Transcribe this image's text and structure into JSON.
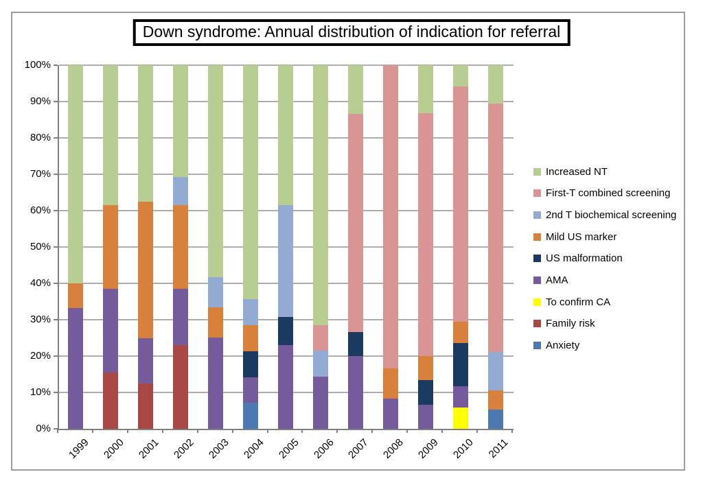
{
  "title": {
    "text": "Down syndrome: Annual distribution of indication for referral"
  },
  "styles": {
    "frame_border": "#9C9C9C",
    "axis_color": "#808080",
    "gridline_color": "#ADADAD",
    "title_border": "#000000",
    "background": "#FFFFFF"
  },
  "chart_data": {
    "type": "bar",
    "stacked": true,
    "percent_stacked": true,
    "title": "Down syndrome: Annual distribution of indication for referral",
    "categories": [
      "1999",
      "2000",
      "2001",
      "2002",
      "2003",
      "2004",
      "2005",
      "2006",
      "2007",
      "2008",
      "2009",
      "2010",
      "2011"
    ],
    "series": [
      {
        "name": "Anxiety",
        "color": "#4C7AB0",
        "values": [
          0,
          0,
          0,
          0,
          0,
          7.1,
          0,
          0,
          0,
          0,
          0,
          0,
          5.3
        ]
      },
      {
        "name": "Family risk",
        "color": "#A84744",
        "values": [
          0,
          15.4,
          12.5,
          23.1,
          0,
          0,
          0,
          0,
          0,
          0,
          0,
          0,
          0
        ]
      },
      {
        "name": "To confirm CA",
        "color": "#FDFF00",
        "values": [
          0,
          0,
          0,
          0,
          0,
          0,
          0,
          0,
          0,
          0,
          0,
          5.9,
          0
        ]
      },
      {
        "name": "AMA",
        "color": "#745B9C",
        "values": [
          33.3,
          23.1,
          12.5,
          15.4,
          25.0,
          7.1,
          23.1,
          14.3,
          20.0,
          8.3,
          6.7,
          5.9,
          0
        ]
      },
      {
        "name": "US malformation",
        "color": "#1A3A60",
        "values": [
          0,
          0,
          0,
          0,
          0,
          7.1,
          7.7,
          0,
          6.7,
          0,
          6.7,
          11.8,
          0
        ]
      },
      {
        "name": "Mild US marker",
        "color": "#D8813C",
        "values": [
          6.7,
          23.1,
          37.5,
          23.1,
          8.3,
          7.1,
          0,
          0,
          0,
          8.3,
          6.7,
          5.9,
          5.3
        ]
      },
      {
        "name": "2nd T biochemical screening",
        "color": "#93ABD3",
        "values": [
          0,
          0,
          0,
          7.7,
          8.3,
          7.1,
          30.8,
          7.1,
          0,
          0,
          0,
          0,
          10.5
        ]
      },
      {
        "name": "First-T combined screening",
        "color": "#D89593",
        "values": [
          0,
          0,
          0,
          0,
          0,
          0,
          0,
          7.1,
          60.0,
          83.3,
          66.7,
          64.7,
          68.4
        ]
      },
      {
        "name": "Increased NT",
        "color": "#B7CD92",
        "values": [
          60.0,
          38.5,
          37.5,
          30.8,
          58.3,
          64.3,
          38.5,
          71.4,
          13.3,
          0,
          13.3,
          5.9,
          10.5
        ]
      }
    ],
    "legend": {
      "position": "right",
      "items_top_to_bottom": [
        "Increased NT",
        "First-T combined screening",
        "2nd T biochemical screening",
        "Mild US marker",
        "US malformation",
        "AMA",
        "To confirm CA",
        "Family risk",
        "Anxiety"
      ]
    },
    "y_axis": {
      "min": 0,
      "max": 100,
      "tick_step": 10,
      "tick_labels": [
        "0%",
        "10%",
        "20%",
        "30%",
        "40%",
        "50%",
        "60%",
        "70%",
        "80%",
        "90%",
        "100%"
      ]
    },
    "x_axis": {
      "label_rotation_deg": -45
    },
    "grid": "horizontal"
  }
}
